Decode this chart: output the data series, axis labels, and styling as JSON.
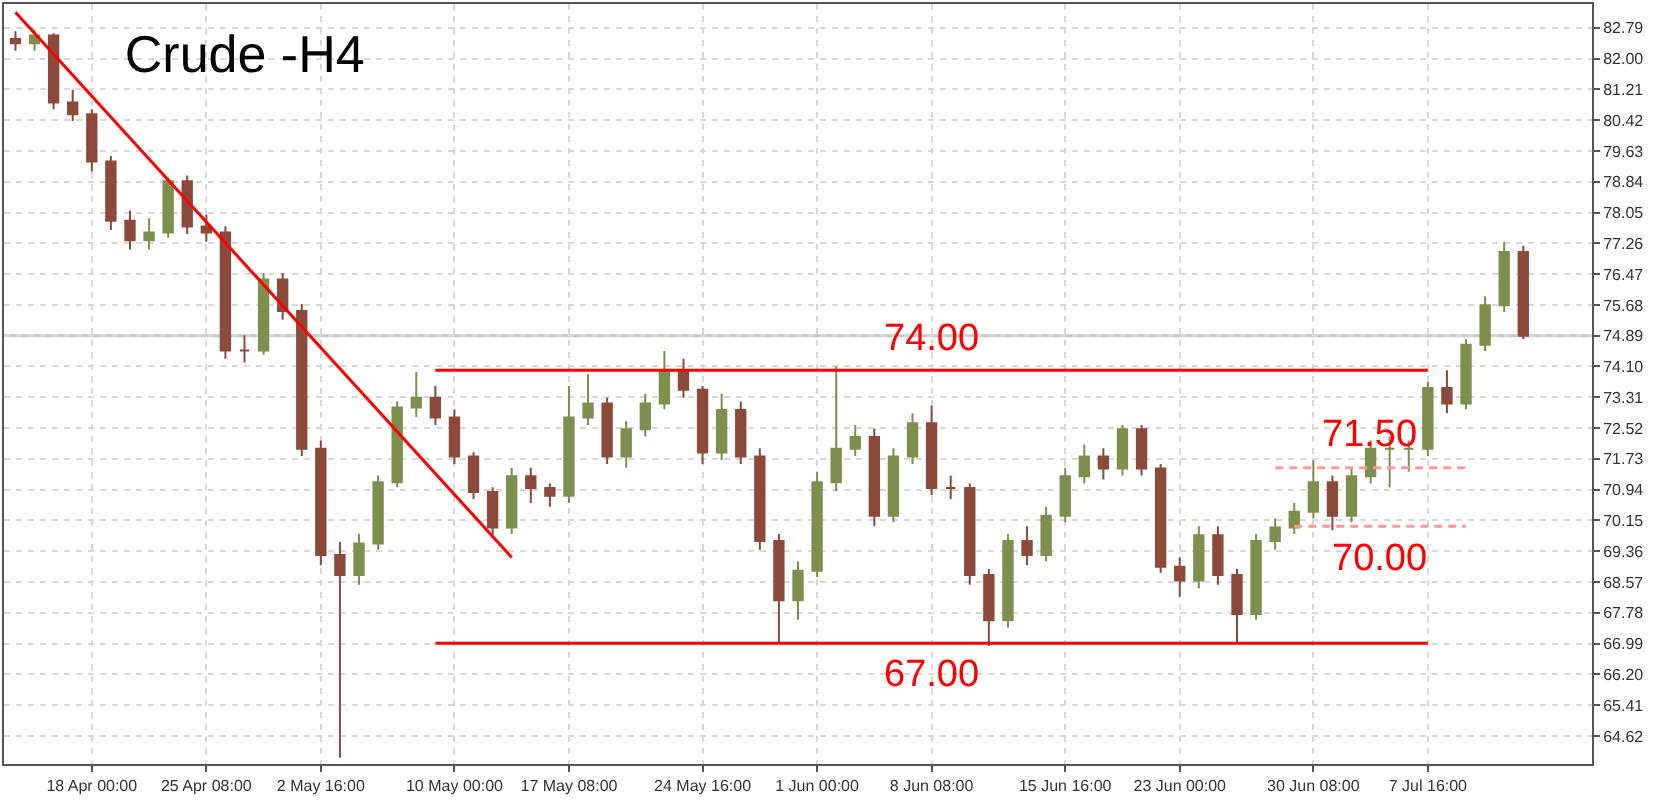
{
  "chart_data": {
    "type": "candlestick",
    "title": "Crude -H4",
    "categories": [
      null,
      null,
      null,
      null,
      "18 Apr 00:00",
      null,
      null,
      null,
      null,
      null,
      "25 Apr 08:00",
      null,
      null,
      null,
      null,
      null,
      "2 May 16:00",
      null,
      null,
      null,
      null,
      null,
      null,
      "10 May 00:00",
      null,
      null,
      null,
      null,
      null,
      "17 May 08:00",
      null,
      null,
      null,
      null,
      null,
      null,
      "24 May 16:00",
      null,
      null,
      null,
      null,
      null,
      "1 Jun 00:00",
      null,
      null,
      null,
      null,
      null,
      "8 Jun 08:00",
      null,
      null,
      null,
      null,
      null,
      null,
      "15 Jun 16:00",
      null,
      null,
      null,
      null,
      null,
      "23 Jun 00:00",
      null,
      null,
      null,
      null,
      null,
      null,
      "30 Jun 08:00",
      null,
      null,
      null,
      null,
      null,
      "7 Jul 16:00",
      null,
      null,
      null,
      null,
      null
    ],
    "ohlc": [
      [
        82.5,
        82.7,
        82.2,
        82.39
      ],
      [
        82.39,
        82.74,
        82.2,
        82.59
      ],
      [
        82.59,
        82.65,
        80.7,
        80.87
      ],
      [
        80.87,
        81.2,
        80.4,
        80.57
      ],
      [
        80.57,
        80.7,
        79.1,
        79.36
      ],
      [
        79.36,
        79.5,
        77.6,
        77.84
      ],
      [
        77.84,
        78.1,
        77.1,
        77.34
      ],
      [
        77.34,
        77.9,
        77.1,
        77.54
      ],
      [
        77.54,
        78.95,
        77.4,
        78.85
      ],
      [
        78.85,
        79.0,
        77.5,
        77.69
      ],
      [
        77.69,
        78.0,
        77.3,
        77.54
      ],
      [
        77.54,
        77.7,
        74.3,
        74.51
      ],
      [
        74.51,
        74.9,
        74.2,
        74.51
      ],
      [
        74.51,
        76.5,
        74.4,
        76.33
      ],
      [
        76.33,
        76.5,
        75.3,
        75.52
      ],
      [
        75.52,
        75.7,
        71.8,
        71.99
      ],
      [
        71.99,
        72.2,
        69.0,
        69.26
      ],
      [
        69.26,
        69.6,
        64.06,
        68.75
      ],
      [
        68.75,
        69.8,
        68.5,
        69.56
      ],
      [
        69.56,
        71.3,
        69.4,
        71.13
      ],
      [
        71.13,
        73.2,
        71.0,
        73.05
      ],
      [
        73.05,
        73.96,
        72.8,
        73.3
      ],
      [
        73.3,
        73.6,
        72.6,
        72.79
      ],
      [
        72.79,
        73.0,
        71.6,
        71.79
      ],
      [
        71.79,
        71.9,
        70.7,
        70.88
      ],
      [
        70.88,
        71.0,
        69.7,
        69.97
      ],
      [
        69.97,
        71.5,
        69.8,
        71.28
      ],
      [
        71.28,
        71.5,
        70.6,
        70.98
      ],
      [
        70.98,
        71.1,
        70.5,
        70.78
      ],
      [
        70.78,
        73.6,
        70.6,
        72.79
      ],
      [
        72.79,
        73.9,
        72.6,
        73.15
      ],
      [
        73.15,
        73.3,
        71.6,
        71.79
      ],
      [
        71.79,
        72.7,
        71.5,
        72.49
      ],
      [
        72.49,
        73.4,
        72.3,
        73.15
      ],
      [
        73.15,
        74.5,
        73.0,
        74.01
      ],
      [
        74.01,
        74.3,
        73.3,
        73.5
      ],
      [
        73.5,
        73.6,
        71.6,
        71.89
      ],
      [
        71.89,
        73.4,
        71.7,
        72.98
      ],
      [
        72.98,
        73.2,
        71.6,
        71.79
      ],
      [
        71.79,
        72.0,
        69.4,
        69.62
      ],
      [
        69.62,
        69.8,
        67.0,
        68.1
      ],
      [
        68.1,
        69.1,
        67.6,
        68.86
      ],
      [
        68.86,
        71.4,
        68.7,
        71.13
      ],
      [
        71.13,
        74.1,
        70.9,
        71.99
      ],
      [
        71.99,
        72.6,
        71.8,
        72.29
      ],
      [
        72.29,
        72.5,
        70.0,
        70.27
      ],
      [
        70.27,
        72.0,
        70.1,
        71.79
      ],
      [
        71.79,
        72.9,
        71.6,
        72.64
      ],
      [
        72.64,
        73.1,
        70.8,
        70.98
      ],
      [
        70.98,
        71.3,
        70.7,
        70.98
      ],
      [
        70.98,
        71.1,
        68.5,
        68.75
      ],
      [
        68.75,
        68.9,
        66.93,
        67.59
      ],
      [
        67.59,
        69.8,
        67.4,
        69.62
      ],
      [
        69.62,
        70.0,
        69.0,
        69.26
      ],
      [
        69.26,
        70.5,
        69.1,
        70.27
      ],
      [
        70.27,
        71.5,
        70.1,
        71.28
      ],
      [
        71.28,
        72.1,
        71.1,
        71.79
      ],
      [
        71.79,
        72.0,
        71.2,
        71.48
      ],
      [
        71.48,
        72.6,
        71.3,
        72.49
      ],
      [
        72.49,
        72.6,
        71.3,
        71.48
      ],
      [
        71.48,
        71.6,
        68.8,
        68.96
      ],
      [
        68.96,
        69.2,
        68.2,
        68.61
      ],
      [
        68.61,
        70.0,
        68.4,
        69.77
      ],
      [
        69.77,
        70.0,
        68.5,
        68.75
      ],
      [
        68.75,
        68.9,
        67.0,
        67.75
      ],
      [
        67.75,
        69.8,
        67.6,
        69.62
      ],
      [
        69.62,
        70.2,
        69.4,
        69.97
      ],
      [
        69.97,
        70.6,
        69.8,
        70.37
      ],
      [
        70.37,
        71.7,
        70.2,
        71.13
      ],
      [
        71.13,
        71.3,
        69.9,
        70.27
      ],
      [
        70.27,
        71.5,
        70.1,
        71.28
      ],
      [
        71.28,
        72.2,
        71.1,
        71.99
      ],
      [
        71.99,
        72.3,
        71.0,
        71.99
      ],
      [
        71.99,
        72.2,
        71.4,
        71.99
      ],
      [
        71.99,
        73.7,
        71.8,
        73.55
      ],
      [
        73.55,
        74.0,
        72.9,
        73.15
      ],
      [
        73.15,
        74.8,
        73.0,
        74.66
      ],
      [
        74.66,
        75.9,
        74.5,
        75.67
      ],
      [
        75.67,
        77.3,
        75.5,
        77.04
      ],
      [
        77.04,
        77.2,
        74.8,
        74.89
      ]
    ],
    "series": [
      {
        "type": "line",
        "values": [
          83.19,
          null,
          null,
          null,
          null,
          null,
          null,
          null,
          null,
          null,
          null,
          null,
          null,
          null,
          null,
          null,
          null,
          null,
          null,
          null,
          null,
          null,
          null,
          null,
          null,
          null,
          69.2,
          null,
          null,
          null,
          null,
          null,
          null,
          null,
          null,
          null,
          null,
          null,
          null,
          null,
          null,
          null,
          null,
          null,
          null,
          null,
          null,
          null,
          null,
          null,
          null,
          null,
          null,
          null,
          null,
          null,
          null,
          null,
          null,
          null,
          null,
          null,
          null,
          null,
          null,
          null,
          null,
          null,
          null,
          null,
          null,
          null,
          null,
          null,
          null,
          null,
          null,
          null,
          null,
          null
        ],
        "color": "#ff0000",
        "line_style": "solid"
      },
      {
        "type": "line",
        "name": "74.00",
        "values": [
          null,
          null,
          null,
          null,
          null,
          null,
          null,
          null,
          null,
          null,
          null,
          null,
          null,
          null,
          null,
          null,
          null,
          null,
          null,
          null,
          null,
          null,
          74.0,
          null,
          null,
          null,
          null,
          null,
          null,
          null,
          null,
          null,
          null,
          null,
          null,
          null,
          null,
          null,
          null,
          null,
          null,
          null,
          null,
          null,
          null,
          null,
          null,
          null,
          null,
          null,
          null,
          null,
          null,
          null,
          null,
          null,
          null,
          null,
          null,
          null,
          null,
          null,
          null,
          null,
          null,
          null,
          null,
          null,
          null,
          null,
          null,
          null,
          null,
          null,
          74.0,
          null,
          null,
          null,
          null,
          null
        ],
        "color": "#ff0000",
        "line_style": "solid"
      },
      {
        "type": "line",
        "name": "67.00",
        "values": [
          null,
          null,
          null,
          null,
          null,
          null,
          null,
          null,
          null,
          null,
          null,
          null,
          null,
          null,
          null,
          null,
          null,
          null,
          null,
          null,
          null,
          null,
          67.0,
          null,
          null,
          null,
          null,
          null,
          null,
          null,
          null,
          null,
          null,
          null,
          null,
          null,
          null,
          null,
          null,
          null,
          null,
          null,
          null,
          null,
          null,
          null,
          null,
          null,
          null,
          null,
          null,
          null,
          null,
          null,
          null,
          null,
          null,
          null,
          null,
          null,
          null,
          null,
          null,
          null,
          null,
          null,
          null,
          null,
          null,
          null,
          null,
          null,
          null,
          null,
          67.0,
          null,
          null,
          null,
          null,
          null
        ],
        "color": "#ff0000",
        "line_style": "solid"
      },
      {
        "type": "line",
        "name": "71.50",
        "values": [
          null,
          null,
          null,
          null,
          null,
          null,
          null,
          null,
          null,
          null,
          null,
          null,
          null,
          null,
          null,
          null,
          null,
          null,
          null,
          null,
          null,
          null,
          null,
          null,
          null,
          null,
          null,
          null,
          null,
          null,
          null,
          null,
          null,
          null,
          null,
          null,
          null,
          null,
          null,
          null,
          null,
          null,
          null,
          null,
          null,
          null,
          null,
          null,
          null,
          null,
          null,
          null,
          null,
          null,
          null,
          null,
          null,
          null,
          null,
          null,
          null,
          null,
          null,
          null,
          null,
          null,
          71.5,
          null,
          null,
          null,
          null,
          null,
          null,
          null,
          null,
          null,
          71.5,
          null,
          null,
          null
        ],
        "color": "#ff9999",
        "line_style": "dashed"
      },
      {
        "type": "line",
        "name": "70.00",
        "values": [
          null,
          null,
          null,
          null,
          null,
          null,
          null,
          null,
          null,
          null,
          null,
          null,
          null,
          null,
          null,
          null,
          null,
          null,
          null,
          null,
          null,
          null,
          null,
          null,
          null,
          null,
          null,
          null,
          null,
          null,
          null,
          null,
          null,
          null,
          null,
          null,
          null,
          null,
          null,
          null,
          null,
          null,
          null,
          null,
          null,
          null,
          null,
          null,
          null,
          null,
          null,
          null,
          null,
          null,
          null,
          null,
          null,
          null,
          null,
          null,
          null,
          null,
          null,
          null,
          null,
          null,
          null,
          70.0,
          null,
          null,
          null,
          null,
          null,
          null,
          null,
          null,
          70.0,
          null,
          null,
          null
        ],
        "color": "#ff9999",
        "line_style": "dashed"
      }
    ],
    "ref_lines": [
      {
        "axis": "y",
        "value": 74.89,
        "color": "#c8c8c8"
      }
    ],
    "ylim": [
      63.9,
      83.4
    ],
    "yticks": [
      64.62,
      65.41,
      {
        "value": 66.2,
        "label": "66.20"
      },
      66.99,
      67.78,
      68.57,
      69.36,
      70.15,
      70.94,
      71.73,
      72.52,
      73.31,
      {
        "value": 74.1,
        "label": "74.10"
      },
      74.89,
      75.68,
      76.47,
      77.26,
      78.05,
      78.84,
      79.63,
      80.42,
      81.21,
      {
        "value": 82.0,
        "label": "82.00"
      },
      82.79
    ],
    "grid": true
  }
}
